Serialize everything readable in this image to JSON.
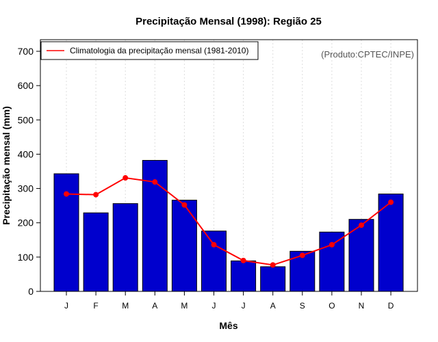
{
  "chart_data": {
    "type": "bar",
    "title": "Precipitação Mensal (1998): Região 25",
    "xlabel": "Mês",
    "ylabel": "Precipitação mensal (mm)",
    "ylim": [
      0,
      700
    ],
    "yticks": [
      0,
      100,
      200,
      300,
      400,
      500,
      600,
      700
    ],
    "categories": [
      "J",
      "F",
      "M",
      "A",
      "M",
      "J",
      "J",
      "A",
      "S",
      "O",
      "N",
      "D"
    ],
    "series": [
      {
        "name": "Precipitação mensal 1998",
        "type": "bar",
        "color": "#0000CD",
        "values": [
          343,
          229,
          256,
          382,
          266,
          176,
          89,
          72,
          117,
          173,
          210,
          284
        ]
      },
      {
        "name": "Climatologia da precipitação mensal (1981-2010)",
        "type": "line",
        "color": "#FF0000",
        "values": [
          284,
          282,
          331,
          319,
          252,
          136,
          90,
          77,
          105,
          136,
          193,
          260
        ]
      }
    ],
    "legend": {
      "label": "Climatologia da precipitação mensal (1981-2010)",
      "position": "top-left"
    },
    "credit": "(Produto:CPTEC/INPE)",
    "grid": "vertical-dotted"
  }
}
